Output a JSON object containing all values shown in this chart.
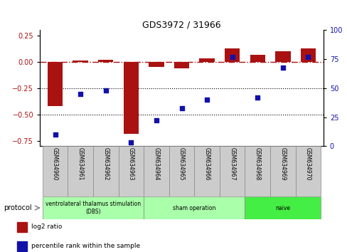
{
  "title": "GDS3972 / 31966",
  "samples": [
    "GSM634960",
    "GSM634961",
    "GSM634962",
    "GSM634963",
    "GSM634964",
    "GSM634965",
    "GSM634966",
    "GSM634967",
    "GSM634968",
    "GSM634969",
    "GSM634970"
  ],
  "log2_ratio": [
    -0.42,
    0.01,
    0.02,
    -0.68,
    -0.05,
    -0.06,
    0.03,
    0.13,
    0.07,
    0.1,
    0.13
  ],
  "percentile_rank": [
    10,
    45,
    48,
    3,
    22,
    33,
    40,
    77,
    42,
    68,
    77
  ],
  "bar_color": "#aa1111",
  "dot_color": "#1111aa",
  "ylim_left": [
    -0.8,
    0.3
  ],
  "ylim_right": [
    0,
    100
  ],
  "yticks_left": [
    0.25,
    0,
    -0.25,
    -0.5,
    -0.75
  ],
  "yticks_right": [
    100,
    75,
    50,
    25,
    0
  ],
  "dotted_lines": [
    -0.25,
    -0.5
  ],
  "group_ranges": [
    {
      "start": 0,
      "end": 3,
      "label": "ventrolateral thalamus stimulation\n(DBS)",
      "color": "#aaffaa"
    },
    {
      "start": 4,
      "end": 7,
      "label": "sham operation",
      "color": "#aaffaa"
    },
    {
      "start": 8,
      "end": 10,
      "label": "naive",
      "color": "#44ee44"
    }
  ],
  "protocol_label": "protocol",
  "legend_items": [
    {
      "label": "log2 ratio",
      "color": "#aa1111"
    },
    {
      "label": "percentile rank within the sample",
      "color": "#1111aa"
    }
  ]
}
